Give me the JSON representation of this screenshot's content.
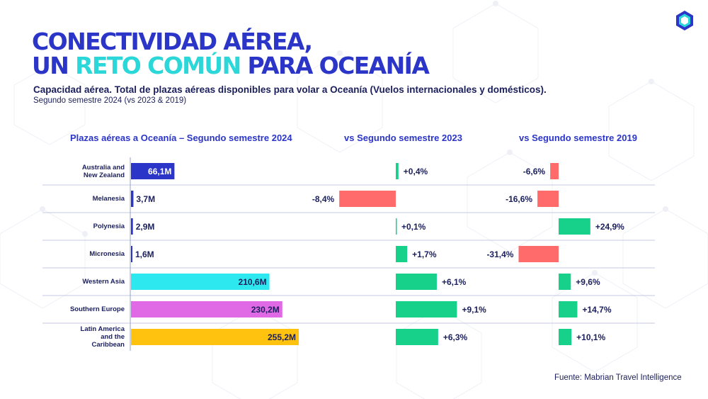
{
  "header": {
    "title_line1": "CONECTIVIDAD AÉREA,",
    "title_line2_part1": "UN ",
    "title_line2_accent": "RETO COMÚN",
    "title_line2_part2": " PARA OCEANÍA",
    "subtitle": "Capacidad aérea. Total de plazas aéreas disponibles para volar a Oceanía (Vuelos internacionales y domésticos).",
    "subnote": "Segundo semestre 2024 (vs 2023 & 2019)"
  },
  "source": "Fuente: Mabrian Travel Intelligence",
  "logo": {
    "icon": "hexagon-logo-icon"
  },
  "colors": {
    "title": "#2b35c8",
    "accent": "#2bd7d8",
    "text": "#1b1f5c",
    "positive": "#17d08a",
    "negative": "#ff6b6b",
    "gridline": "#c5c8e6"
  },
  "chart_data": {
    "type": "bar",
    "orientation": "horizontal",
    "categories": [
      "Australia and New Zealand",
      "Melanesia",
      "Polynesia",
      "Micronesia",
      "Western Asia",
      "Southern Europe",
      "Latin America and the Caribbean"
    ],
    "category_lines": [
      [
        "Australia and",
        "New Zealand"
      ],
      [
        "Melanesia"
      ],
      [
        "Polynesia"
      ],
      [
        "Micronesia"
      ],
      [
        "Western Asia"
      ],
      [
        "Southern Europe"
      ],
      [
        "Latin America",
        "and the",
        "Caribbean"
      ]
    ],
    "series": [
      {
        "name": "Plazas aéreas a Oceanía – Segundo semestre 2024",
        "unit": "M",
        "values": [
          66.1,
          3.7,
          2.9,
          1.6,
          210.6,
          230.2,
          255.2
        ],
        "labels": [
          "66,1M",
          "3,7M",
          "2,9M",
          "1,6M",
          "210,6M",
          "230,2M",
          "255,2M"
        ],
        "colors": [
          "#2b35c8",
          "#2b35c8",
          "#2b35c8",
          "#2b35c8",
          "#2de8ef",
          "#e06ae6",
          "#ffc20e"
        ]
      },
      {
        "name": "vs Segundo semestre 2023",
        "unit": "%",
        "values": [
          0.4,
          -8.4,
          0.1,
          1.7,
          6.1,
          9.1,
          6.3
        ],
        "labels": [
          "+0,4%",
          "-8,4%",
          "+0,1%",
          "+1,7%",
          "+6,1%",
          "+9,1%",
          "+6,3%"
        ]
      },
      {
        "name": "vs Segundo semestre 2019",
        "unit": "%",
        "values": [
          -6.6,
          -16.6,
          24.9,
          -31.4,
          9.6,
          14.7,
          10.1
        ],
        "labels": [
          "-6,6%",
          "-16,6%",
          "+24,9%",
          "-31,4%",
          "+9,6%",
          "+14,7%",
          "+10,1%"
        ]
      }
    ]
  }
}
